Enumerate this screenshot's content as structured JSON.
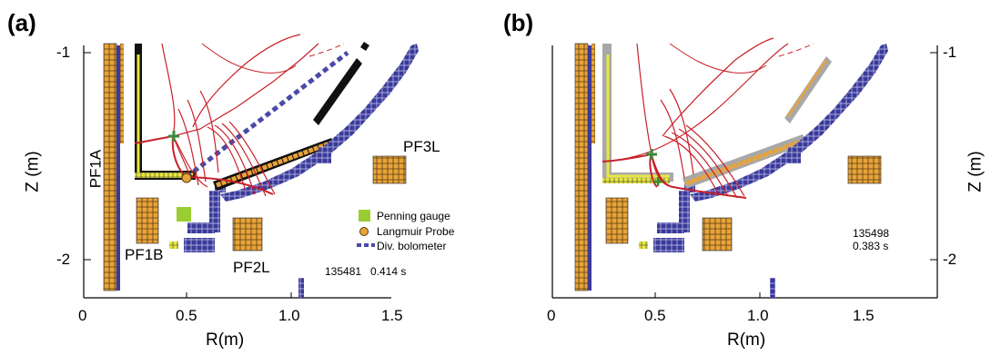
{
  "panels": [
    {
      "label": "(a)",
      "xlabel": "R(m)",
      "ylabel": "Z (m)",
      "xticks": [
        "0",
        "0.5",
        "1.0",
        "1.5"
      ],
      "yticks": [
        "-1",
        "-2"
      ],
      "coil_labels": [
        "PF1A",
        "PF1B",
        "PF2L",
        "PF3L"
      ],
      "legend": [
        "Penning gauge",
        "Langmuir Probe",
        "Div. bolometer"
      ],
      "shot": "135481",
      "time": "0.414 s"
    },
    {
      "label": "(b)",
      "xlabel": "R(m)",
      "ylabel": "Z (m)",
      "xticks": [
        "0",
        "0.5",
        "1.0",
        "1.5"
      ],
      "yticks": [
        "-1",
        "-2"
      ],
      "shot": "135498",
      "time": "0.383 s"
    }
  ],
  "colors": {
    "coil_orange": "#e8a43a",
    "vessel_blue": "#3a3a9a",
    "separatrix_red": "#c8202a",
    "penning_green": "#9acd32",
    "xpoint_green": "#3a8a3a",
    "bolometer_blue": "#4a4aa8",
    "plate_black": "#111111",
    "plate_gray": "#a8a8a8",
    "plate_yellow": "#e8e840"
  }
}
